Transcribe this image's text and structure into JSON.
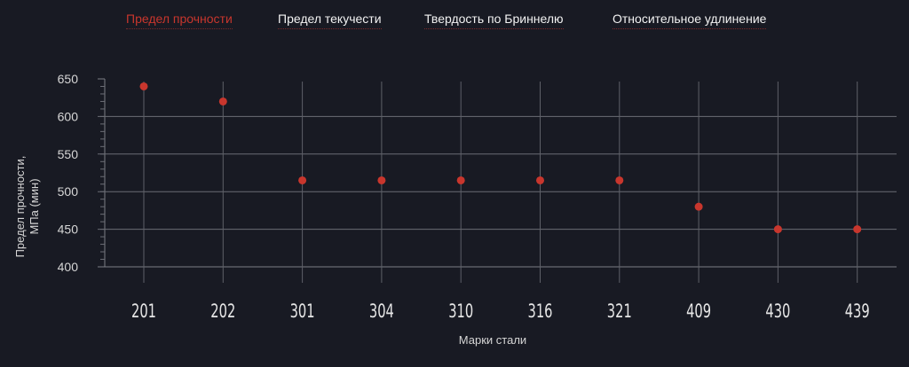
{
  "tabs": [
    {
      "label": "Предел прочности",
      "active": true
    },
    {
      "label": "Предел текучести",
      "active": false
    },
    {
      "label": "Твердость по Бриннелю",
      "active": false
    },
    {
      "label": "Относительное удлинение",
      "active": false
    }
  ],
  "colors": {
    "background": "#181a23",
    "accent": "#c8362d",
    "grid": "#8a8c94",
    "text": "#d6d6d6"
  },
  "chart_data": {
    "type": "scatter",
    "categories": [
      "201",
      "202",
      "301",
      "304",
      "310",
      "316",
      "321",
      "409",
      "430",
      "439"
    ],
    "series": [
      {
        "values": [
          640,
          620,
          515,
          515,
          515,
          515,
          515,
          480,
          450,
          450
        ]
      }
    ],
    "ylabel_lines": [
      "Предел прочности,",
      "МПа (мин)"
    ],
    "xlabel": "Марки стали",
    "yticks": [
      400,
      450,
      500,
      550,
      600,
      650
    ],
    "ylim": [
      400,
      650
    ],
    "grid": true
  }
}
